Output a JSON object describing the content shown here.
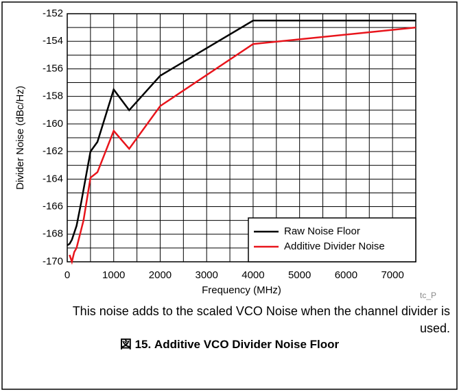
{
  "chart_data": {
    "type": "line",
    "xlabel": "Frequency (MHz)",
    "ylabel": "Divider Noise (dBc/Hz)",
    "xlim": [
      0,
      7500
    ],
    "ylim": [
      -170,
      -152
    ],
    "xticks": [
      0,
      1000,
      2000,
      3000,
      4000,
      5000,
      6000,
      7000
    ],
    "yticks": [
      -170,
      -168,
      -166,
      -164,
      -162,
      -160,
      -158,
      -156,
      -154,
      -152
    ],
    "xgrid": [
      0,
      500,
      1000,
      1500,
      2000,
      2500,
      3000,
      3500,
      4000,
      4500,
      5000,
      5500,
      6000,
      6500,
      7000,
      7500
    ],
    "ygrid": [
      -170,
      -169,
      -168,
      -167,
      -166,
      -165,
      -164,
      -163,
      -162,
      -161,
      -160,
      -159,
      -158,
      -157,
      -156,
      -155,
      -154,
      -153,
      -152
    ],
    "legend": "lower right",
    "series": [
      {
        "name": "Raw Noise Floor",
        "color": "#000000",
        "x": [
          0,
          50,
          100,
          200,
          300,
          500,
          650,
          1000,
          1333,
          2000,
          4000,
          7500
        ],
        "values": [
          -168.8,
          -168.7,
          -168.4,
          -167.4,
          -165.7,
          -162,
          -161.3,
          -157.5,
          -159,
          -156.5,
          -152.5,
          -152.5
        ]
      },
      {
        "name": "Additive Divider Noise",
        "color": "#e8141b",
        "x": [
          50,
          100,
          150,
          200,
          350,
          500,
          650,
          1000,
          1333,
          2000,
          4000,
          7500
        ],
        "values": [
          -169.5,
          -170,
          -169.3,
          -169,
          -167,
          -163.9,
          -163.5,
          -160.5,
          -161.8,
          -158.7,
          -154.2,
          -153
        ]
      }
    ]
  },
  "watermark": "tc_P",
  "note": "This noise adds to the scaled VCO Noise when the channel divider is used.",
  "caption": "図 15. Additive VCO Divider Noise Floor"
}
